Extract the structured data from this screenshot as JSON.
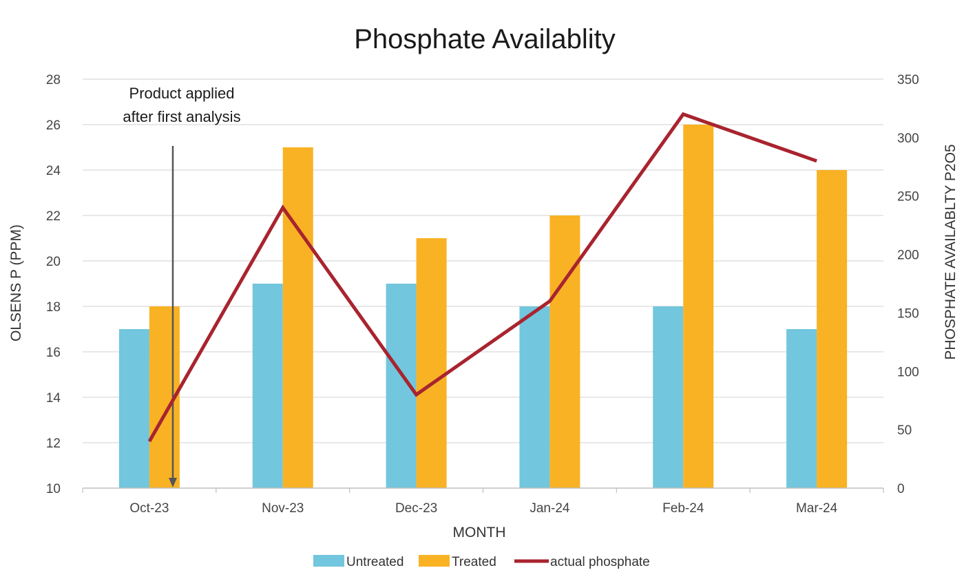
{
  "chart_data": {
    "type": "bar",
    "title": "Phosphate Availablity",
    "xlabel": "MONTH",
    "ylabel": "OLSENS P (PPM)",
    "y2label": "PHOSPHATE AVAILABLTY P2O5",
    "categories": [
      "Oct-23",
      "Nov-23",
      "Dec-23",
      "Jan-24",
      "Feb-24",
      "Mar-24"
    ],
    "ylim": [
      10,
      28
    ],
    "yticks": [
      "10",
      "12",
      "14",
      "16",
      "18",
      "20",
      "22",
      "24",
      "26",
      "28"
    ],
    "y2lim": [
      0,
      350
    ],
    "y2ticks": [
      "0",
      "50",
      "100",
      "150",
      "200",
      "250",
      "300",
      "350"
    ],
    "grid": true,
    "legend_position": "bottom",
    "series": [
      {
        "name": "Untreated",
        "type": "bar",
        "axis": "left",
        "color": "#72C6DD",
        "values": [
          17,
          19,
          19,
          18,
          18,
          17
        ]
      },
      {
        "name": "Treated",
        "type": "bar",
        "axis": "left",
        "color": "#F9B224",
        "values": [
          18,
          25,
          21,
          22,
          26,
          24
        ]
      },
      {
        "name": "actual phosphate",
        "type": "line",
        "axis": "right",
        "color": "#A8242F",
        "values": [
          40,
          240,
          80,
          160,
          320,
          280
        ]
      }
    ],
    "annotation": {
      "lines": [
        "Product applied",
        "after first analysis"
      ],
      "category": "Oct-23"
    }
  }
}
